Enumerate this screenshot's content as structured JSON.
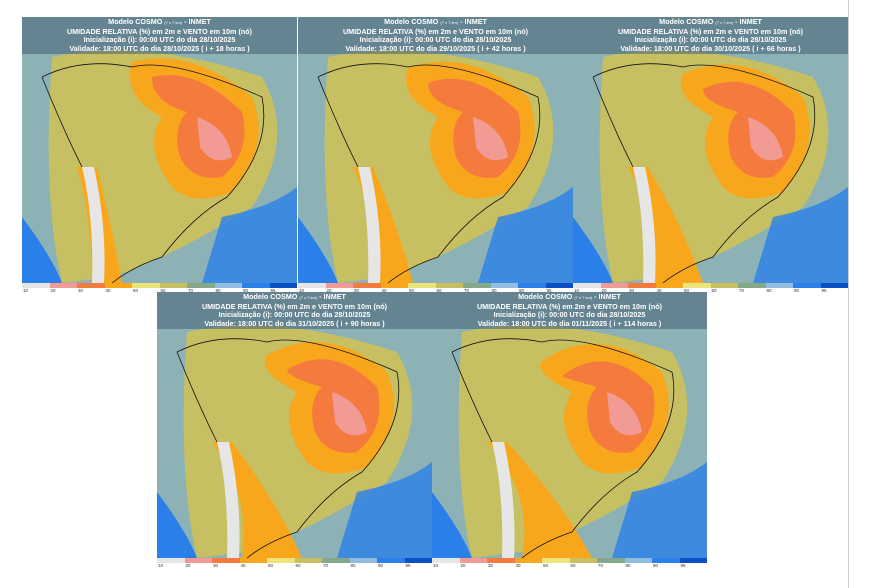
{
  "header_common": {
    "model": "Modelo COSMO",
    "resolution": "(7 x 7 km)",
    "institute": "- INMET",
    "variable": "UMIDADE RELATIVA (%) em 2m e VENTO em 10m (nó)",
    "init": "Inicialização (i): 00:00 UTC do dia 28/10/2025"
  },
  "panels": [
    {
      "validity": "Validade: 18:00 UTC do dia 28/10/2025 ( i + 18 horas )"
    },
    {
      "validity": "Validade: 18:00 UTC do dia 29/10/2025 ( i + 42 horas )"
    },
    {
      "validity": "Validade: 18:00 UTC do dia 30/10/2025 ( i + 66 horas )"
    },
    {
      "validity": "Validade: 18:00 UTC do dia 31/10/2025 ( i + 90 horas )"
    },
    {
      "validity": "Validade: 18:00 UTC do dia 01/11/2025 ( i + 114 horas )"
    }
  ],
  "colorbar": {
    "labels": [
      "10",
      "20",
      "30",
      "40",
      "50",
      "60",
      "70",
      "80",
      "90",
      "95"
    ],
    "colors": [
      "#e6e6e6",
      "#f29a94",
      "#f47a3e",
      "#f8a61c",
      "#ebe47a",
      "#c6c062",
      "#86a88a",
      "#92bde3",
      "#2a80e8",
      "#0a4fc4"
    ]
  }
}
